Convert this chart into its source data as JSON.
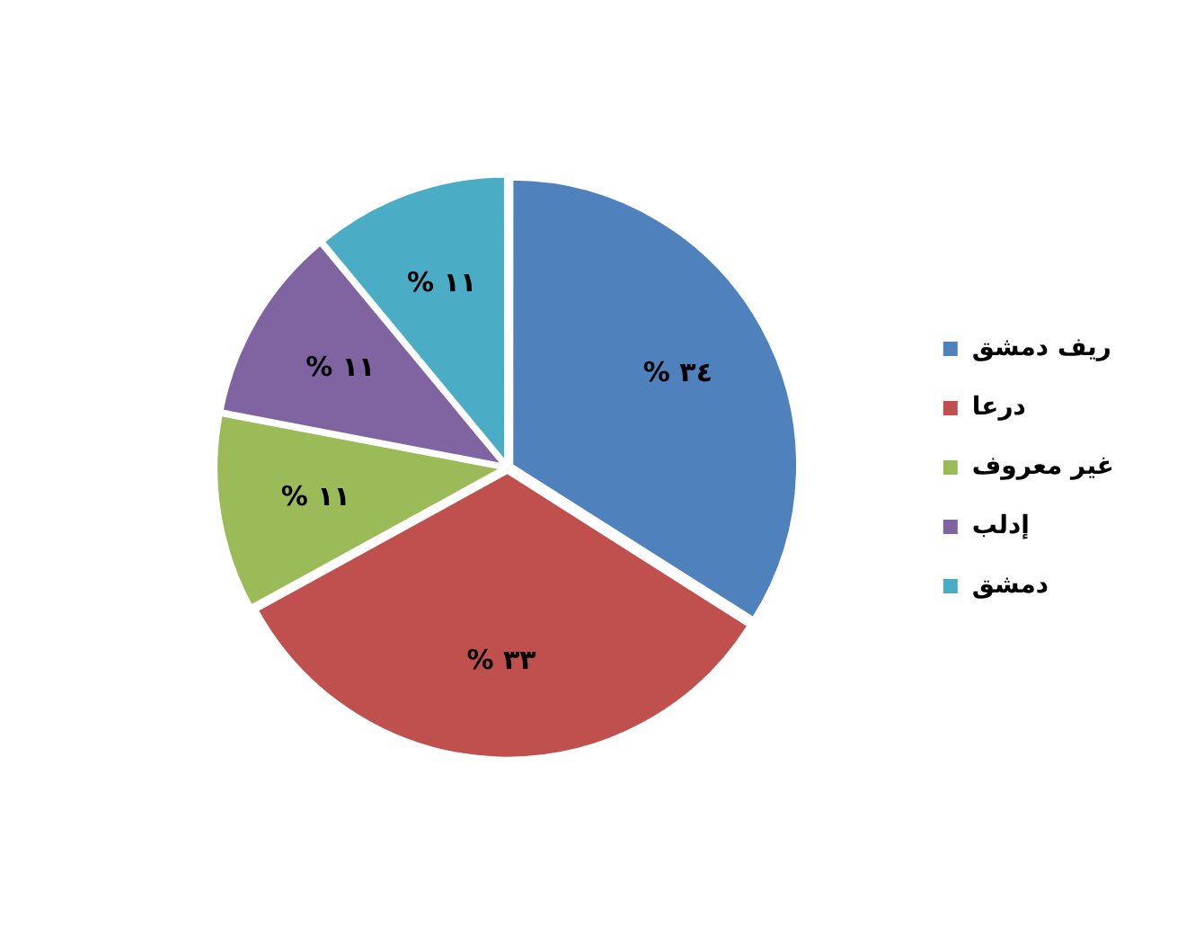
{
  "chart_data": {
    "type": "pie",
    "categories": [
      "ريف دمشق",
      "درعا",
      "غير معروف",
      "إدلب",
      "دمشق"
    ],
    "values": [
      34,
      33,
      11,
      11,
      11
    ],
    "colors": [
      "#4f81bd",
      "#c0504d",
      "#9bbb59",
      "#8064a2",
      "#4bacc6"
    ],
    "value_labels": [
      "٣٤ %",
      "٣٣ %",
      "١١ %",
      "١١ %",
      "١١ %"
    ],
    "legend": "right"
  }
}
